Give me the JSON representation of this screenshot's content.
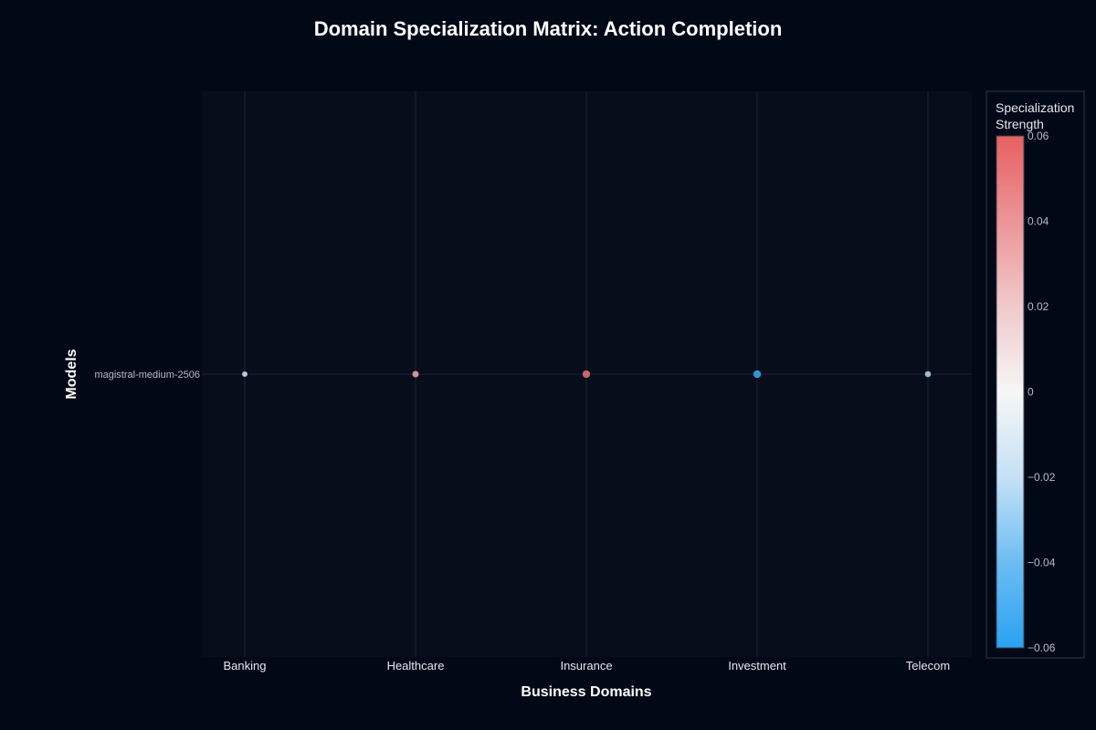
{
  "chart_data": {
    "type": "scatter",
    "title": "Domain Specialization Matrix: Action Completion",
    "xlabel": "Business Domains",
    "ylabel": "Models",
    "categories": [
      "Banking",
      "Healthcare",
      "Insurance",
      "Investment",
      "Telecom"
    ],
    "models": [
      "magistral-medium-2506"
    ],
    "series": [
      {
        "values": [
          -0.012,
          0.032,
          0.052,
          -0.055,
          -0.025
        ]
      }
    ],
    "colorbar": {
      "title_lines": [
        "Specialization",
        "Strength"
      ],
      "range": [
        -0.06,
        0.06
      ],
      "ticks": [
        0.06,
        0.04,
        0.02,
        0,
        -0.02,
        -0.04,
        -0.06
      ],
      "tick_labels": [
        "0.06",
        "0.04",
        "0.02",
        "0",
        "−0.02",
        "−0.04",
        "−0.06"
      ],
      "colorscale": [
        "#29a3f3",
        "#6cbcf2",
        "#c5e1f6",
        "#f6f6f6",
        "#f0c9cb",
        "#eb9597",
        "#e76061"
      ]
    },
    "grid": true,
    "legend": "colorbar-right",
    "colors": {
      "background": "#010816",
      "plot_background": "#070d1b",
      "grid": "#1c2434"
    }
  }
}
